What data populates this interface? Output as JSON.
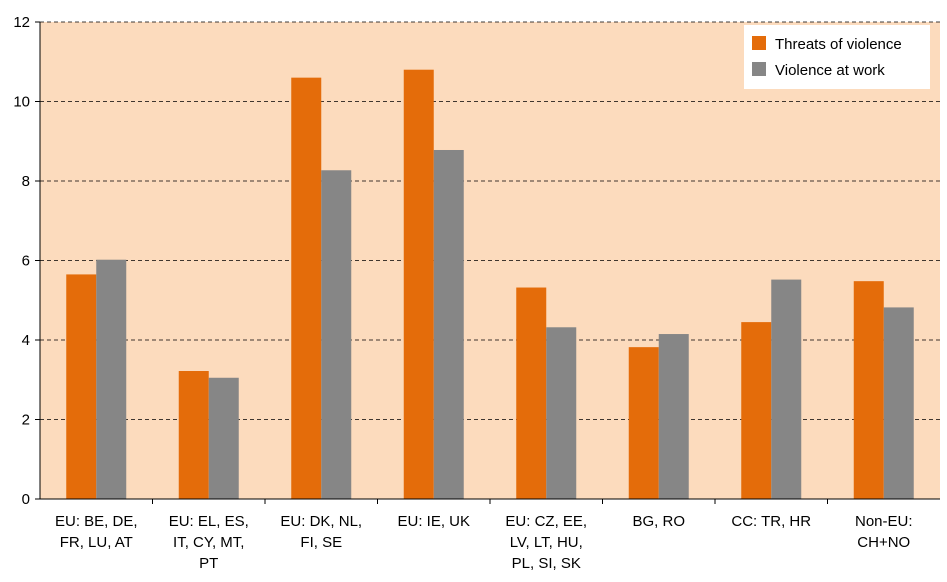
{
  "chart_data": {
    "type": "bar",
    "categories": [
      [
        "EU: BE, DE,",
        "FR, LU, AT"
      ],
      [
        "EU: EL, ES,",
        "IT, CY, MT,",
        "PT"
      ],
      [
        "EU: DK, NL,",
        "FI, SE"
      ],
      [
        "EU: IE, UK"
      ],
      [
        "EU: CZ, EE,",
        "LV, LT, HU,",
        "PL, SI, SK"
      ],
      [
        "BG, RO"
      ],
      [
        "CC: TR, HR"
      ],
      [
        "Non-EU:",
        "CH+NO"
      ]
    ],
    "series": [
      {
        "name": "Threats of violence",
        "color": "#e46c0a",
        "values": [
          5.65,
          3.22,
          10.6,
          10.8,
          5.32,
          3.82,
          4.45,
          5.48
        ]
      },
      {
        "name": "Violence at work",
        "color": "#868686",
        "values": [
          6.02,
          3.05,
          8.27,
          8.78,
          4.32,
          4.15,
          5.52,
          4.82
        ]
      }
    ],
    "ylim": [
      0,
      12
    ],
    "yticks": [
      "0",
      "2",
      "4",
      "6",
      "8",
      "10",
      "12"
    ],
    "grid": true,
    "legend_position": "top-right",
    "plot_background": "#fcdbbd"
  }
}
